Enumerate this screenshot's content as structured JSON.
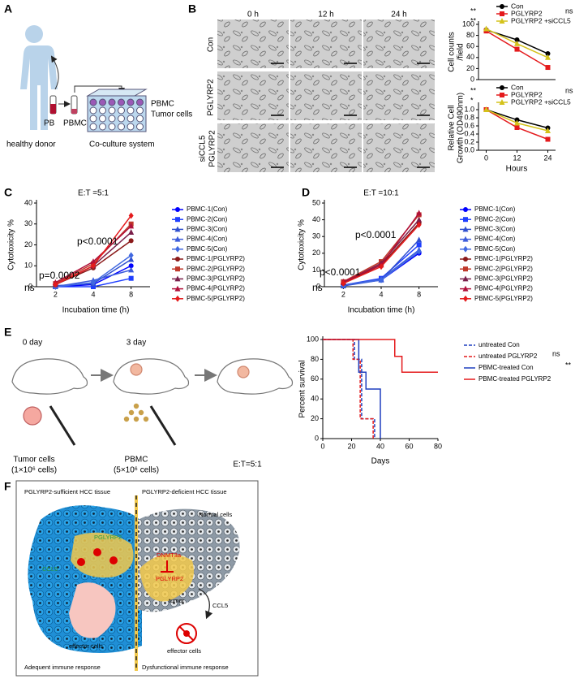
{
  "panel_labels": [
    "A",
    "B",
    "C",
    "D",
    "E",
    "F"
  ],
  "panel_a": {
    "donor": "healthy donor",
    "pb": "PB",
    "pbmc": "PBMC",
    "plate": [
      "PBMC",
      "Tumor cells"
    ],
    "system": "Co-culture system"
  },
  "panel_b": {
    "columns": [
      "0 h",
      "12 h",
      "24 h"
    ],
    "rows": [
      [
        "Con"
      ],
      [
        "PGLYRP2"
      ],
      [
        "siCCL5",
        "PGLYRP2"
      ]
    ]
  },
  "panel_e": {
    "steps": [
      "0 day",
      "3 day"
    ],
    "tumor": [
      "Tumor cells",
      "(1×10⁶ cells)"
    ],
    "pbmc": [
      "PBMC",
      "(5×10⁶ cells)"
    ],
    "ratio": "E:T=5:1"
  },
  "panel_f": {
    "left_title": "PGLYRP2-sufficient HCC tissue",
    "right_title": "PGLYRP2-deficient HCC tissue",
    "normal": "Normal cells",
    "dnmt": "DNMT3a",
    "pglyrp2_left": "PGLYRP2",
    "pglyrp2_right": "PGLYRP2",
    "ccl5_left": "CCL5",
    "ccl5_right": "CCL5",
    "tumor": "tumor",
    "effector_left": "effector cells",
    "effector_right": "effector cells",
    "left_response": "Adequent immune response",
    "right_response": "Dysfunctional immune response"
  },
  "chart_data": [
    {
      "type": "line",
      "ylabel": [
        "Cell counts",
        "/field"
      ],
      "x": [
        0,
        12,
        24
      ],
      "xlim": [
        -3,
        27
      ],
      "ylim": [
        0,
        100
      ],
      "yticks": [
        0,
        20,
        40,
        60,
        80,
        100
      ],
      "series": [
        {
          "name": "Con",
          "color": "#000000",
          "marker": "circle",
          "values": [
            90,
            72,
            47
          ]
        },
        {
          "name": "PGLYRP2",
          "color": "#e41a1c",
          "marker": "square",
          "values": [
            88,
            55,
            22
          ]
        },
        {
          "name": "PGLYRP2 +siCCL5",
          "color": "#d4c21a",
          "marker": "triangle",
          "values": [
            92,
            65,
            40
          ]
        }
      ],
      "annotations": [
        "**",
        "**",
        "ns"
      ]
    },
    {
      "type": "line",
      "ylabel": [
        "Relative Cell",
        "Growth (OD490nm)"
      ],
      "xlabel": "Hours",
      "x": [
        0,
        12,
        24
      ],
      "xlim": [
        -3,
        27
      ],
      "xticks": [
        0,
        12,
        24
      ],
      "ylim": [
        0,
        1.1
      ],
      "yticks": [
        {
          "value": 0,
          "label": "0.0"
        },
        0.2,
        0.4,
        0.6,
        0.8,
        {
          "value": 1,
          "label": "1.0"
        }
      ],
      "series": [
        {
          "name": "Con",
          "color": "#000000",
          "marker": "circle",
          "values": [
            1.0,
            0.75,
            0.55
          ]
        },
        {
          "name": "PGLYRP2",
          "color": "#e41a1c",
          "marker": "square",
          "values": [
            1.0,
            0.56,
            0.27
          ]
        },
        {
          "name": "PGLYRP2 +siCCL5",
          "color": "#d4c21a",
          "marker": "triangle",
          "values": [
            1.0,
            0.67,
            0.48
          ]
        }
      ],
      "annotations": [
        "**",
        "*",
        "ns"
      ]
    },
    {
      "type": "line",
      "title": "E:T =5:1",
      "ylabel": "Cytotoxicity %",
      "xlabel": "Incubation time (h)",
      "categories": [
        "2",
        "4",
        "8"
      ],
      "ylim": [
        0,
        40
      ],
      "yticks": [
        0,
        10,
        20,
        30,
        40
      ],
      "series": [
        {
          "name": "PBMC-1(Con)",
          "color": "#0000ff",
          "marker": "circle",
          "values": [
            0,
            1,
            10
          ]
        },
        {
          "name": "PBMC-2(Con)",
          "color": "#1f3fff",
          "marker": "square",
          "values": [
            0,
            0,
            4
          ]
        },
        {
          "name": "PBMC-3(Con)",
          "color": "#2f4fcf",
          "marker": "triangle",
          "values": [
            0.5,
            1.5,
            13
          ]
        },
        {
          "name": "PBMC-4(Con)",
          "color": "#3b5bdb",
          "marker": "triangle",
          "values": [
            0,
            3,
            8
          ]
        },
        {
          "name": "PBMC-5(Con)",
          "color": "#4169e1",
          "marker": "diamond",
          "values": [
            0,
            2,
            15
          ]
        },
        {
          "name": "PBMC-1(PGLYRP2)",
          "color": "#8b1a1a",
          "marker": "circle",
          "values": [
            1,
            9,
            22
          ]
        },
        {
          "name": "PBMC-2(PGLYRP2)",
          "color": "#c0392b",
          "marker": "square",
          "values": [
            1.5,
            11,
            30
          ]
        },
        {
          "name": "PBMC-3(PGLYRP2)",
          "color": "#7a1f4a",
          "marker": "triangle",
          "values": [
            1,
            10,
            26
          ]
        },
        {
          "name": "PBMC-4(PGLYRP2)",
          "color": "#b0103a",
          "marker": "triangle",
          "values": [
            2,
            12,
            29
          ]
        },
        {
          "name": "PBMC-5(PGLYRP2)",
          "color": "#e41a1c",
          "marker": "diamond",
          "values": [
            1,
            10,
            34
          ]
        }
      ],
      "annotations": [
        "p=0.0002",
        "ns",
        "p<0.0001"
      ]
    },
    {
      "type": "line",
      "title": "E:T =10:1",
      "ylabel": "Cytotoxicity %",
      "xlabel": "Incubation time (h)",
      "categories": [
        "2",
        "4",
        "8"
      ],
      "ylim": [
        0,
        50
      ],
      "yticks": [
        0,
        10,
        20,
        30,
        40,
        50
      ],
      "series": [
        {
          "name": "PBMC-1(Con)",
          "color": "#0000ff",
          "marker": "circle",
          "values": [
            1,
            4,
            20
          ]
        },
        {
          "name": "PBMC-2(Con)",
          "color": "#1f3fff",
          "marker": "square",
          "values": [
            1,
            5,
            25
          ]
        },
        {
          "name": "PBMC-3(Con)",
          "color": "#2f4fcf",
          "marker": "triangle",
          "values": [
            0.5,
            4,
            28
          ]
        },
        {
          "name": "PBMC-4(Con)",
          "color": "#3b5bdb",
          "marker": "triangle",
          "values": [
            1,
            4.5,
            22
          ]
        },
        {
          "name": "PBMC-5(Con)",
          "color": "#4169e1",
          "marker": "diamond",
          "values": [
            1,
            4,
            21
          ]
        },
        {
          "name": "PBMC-1(PGLYRP2)",
          "color": "#8b1a1a",
          "marker": "circle",
          "values": [
            2,
            13,
            38
          ]
        },
        {
          "name": "PBMC-2(PGLYRP2)",
          "color": "#c0392b",
          "marker": "square",
          "values": [
            3,
            15,
            43
          ]
        },
        {
          "name": "PBMC-3(PGLYRP2)",
          "color": "#7a1f4a",
          "marker": "triangle",
          "values": [
            2.5,
            14,
            40
          ]
        },
        {
          "name": "PBMC-4(PGLYRP2)",
          "color": "#b0103a",
          "marker": "triangle",
          "values": [
            3,
            13,
            44
          ]
        },
        {
          "name": "PBMC-5(PGLYRP2)",
          "color": "#e41a1c",
          "marker": "diamond",
          "values": [
            2,
            12,
            37
          ]
        }
      ],
      "annotations": [
        "p<0.0001",
        "ns",
        "p<0.0001"
      ]
    },
    {
      "type": "step",
      "ylabel": "Percent survival",
      "xlabel": "Days",
      "xlim": [
        0,
        80
      ],
      "xticks": [
        0,
        20,
        40,
        60,
        80
      ],
      "ylim": [
        0,
        100
      ],
      "yticks": [
        0,
        20,
        40,
        60,
        80,
        100
      ],
      "series": [
        {
          "name": "untreated Con",
          "color": "#1f3fbf",
          "dashed": true,
          "x": [
            0,
            22,
            27,
            36
          ],
          "values": [
            100,
            80,
            20,
            0
          ]
        },
        {
          "name": "untreated PGLYRP2",
          "color": "#e41a1c",
          "dashed": true,
          "x": [
            0,
            21,
            26,
            35
          ],
          "values": [
            100,
            80,
            20,
            0
          ]
        },
        {
          "name": "PBMC-treated Con",
          "color": "#1f3fbf",
          "dashed": false,
          "x": [
            0,
            25,
            30,
            40
          ],
          "values": [
            100,
            67,
            50,
            0
          ]
        },
        {
          "name": "PBMC-treated PGLYRP2",
          "color": "#e41a1c",
          "dashed": false,
          "x": [
            0,
            50,
            55,
            80
          ],
          "values": [
            100,
            83,
            67,
            67
          ]
        }
      ],
      "annotations": [
        "ns",
        "**"
      ]
    }
  ]
}
